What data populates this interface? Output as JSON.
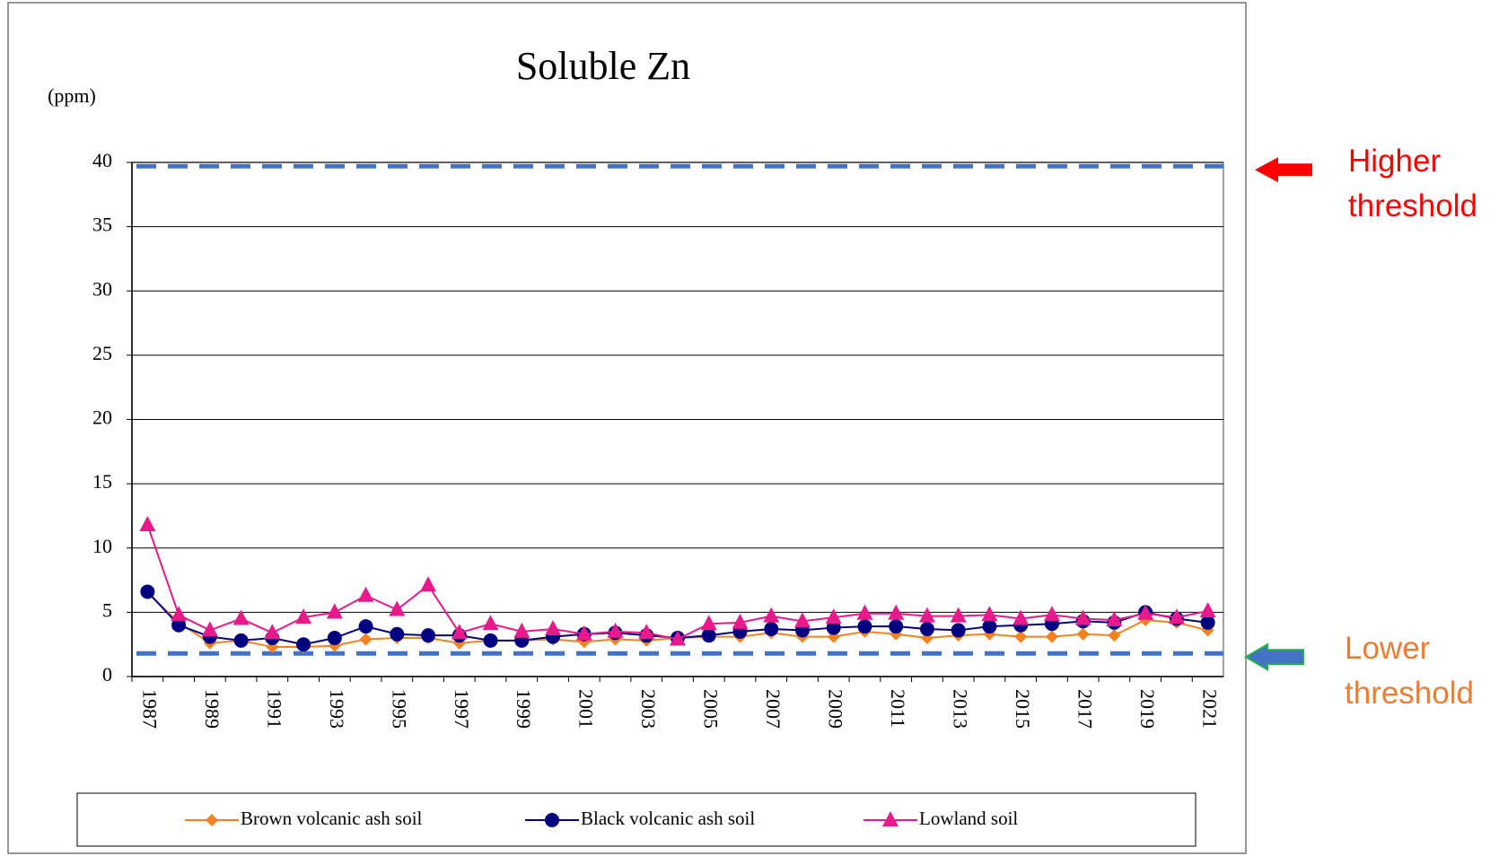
{
  "chart_data": {
    "type": "line",
    "title": "Soluble Zn",
    "y_unit": "(ppm)",
    "categories": [
      "1987",
      null,
      "1989",
      null,
      "1991",
      null,
      "1993",
      null,
      "1995",
      null,
      "1997",
      null,
      "1999",
      null,
      "2001",
      null,
      "2003",
      null,
      "2005",
      null,
      "2007",
      null,
      "2009",
      null,
      "2011",
      null,
      "2013",
      null,
      "2015",
      null,
      "2017",
      null,
      "2019",
      null,
      "2021"
    ],
    "series": [
      {
        "name": "Brown volcanic ash soil",
        "color": "#f5821f",
        "marker": "diamond",
        "values": [
          6.5,
          4.2,
          2.6,
          2.8,
          2.3,
          2.3,
          2.4,
          2.9,
          3.0,
          3.0,
          2.6,
          2.8,
          2.8,
          2.9,
          2.7,
          2.9,
          2.8,
          3.0,
          3.1,
          3.1,
          3.4,
          3.1,
          3.1,
          3.5,
          3.3,
          3.0,
          3.2,
          3.3,
          3.1,
          3.1,
          3.3,
          3.2,
          4.4,
          4.2,
          3.6
        ]
      },
      {
        "name": "Black volcanic ash soil",
        "color": "#000080",
        "marker": "circle",
        "values": [
          6.6,
          4.0,
          3.1,
          2.8,
          3.0,
          2.5,
          3.0,
          3.9,
          3.3,
          3.2,
          3.2,
          2.8,
          2.8,
          3.1,
          3.3,
          3.4,
          3.2,
          3.0,
          3.2,
          3.5,
          3.7,
          3.6,
          3.8,
          3.9,
          3.9,
          3.7,
          3.6,
          3.9,
          4.0,
          4.1,
          4.3,
          4.2,
          5.0,
          4.5,
          4.2
        ]
      },
      {
        "name": "Lowland soil",
        "color": "#e8198b",
        "marker": "triangle",
        "values": [
          11.8,
          4.8,
          3.6,
          4.5,
          3.4,
          4.6,
          5.0,
          6.3,
          5.2,
          7.1,
          3.4,
          4.1,
          3.5,
          3.7,
          3.3,
          3.5,
          3.4,
          2.9,
          4.1,
          4.2,
          4.7,
          4.3,
          4.6,
          4.9,
          4.9,
          4.7,
          4.7,
          4.8,
          4.5,
          4.8,
          4.5,
          4.4,
          4.9,
          4.6,
          5.1
        ]
      }
    ],
    "ylim": [
      0,
      40
    ],
    "yticks": [
      0,
      5,
      10,
      15,
      20,
      25,
      30,
      35,
      40
    ],
    "grid": true,
    "thresholds": [
      {
        "label": "Higher threshold",
        "value": 39.7,
        "color": "#ff0000"
      },
      {
        "label": "Lower threshold",
        "value": 1.8,
        "color": "#ed7d31"
      }
    ]
  }
}
